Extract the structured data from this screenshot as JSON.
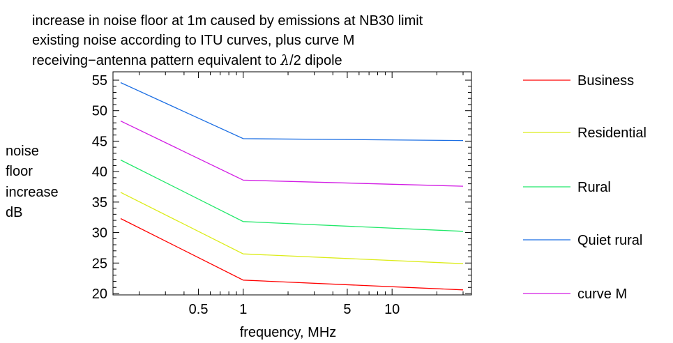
{
  "chart_data": {
    "type": "line",
    "title_lines": [
      "increase in noise floor at 1m caused by emissions at NB30 limit",
      "existing noise according to ITU curves, plus curve M"
    ],
    "title_line3": {
      "before": "receiving−antenna pattern equivalent to ",
      "symbol": "λ",
      "after": "/2 dipole"
    },
    "ylabel_lines": [
      "noise",
      "floor",
      "increase",
      "dB"
    ],
    "xlabel": "frequency, MHz",
    "x_scale": "log",
    "xlim": [
      0.15,
      30
    ],
    "ylim": [
      20,
      55
    ],
    "x_ticks": [
      {
        "value": 0.5,
        "label": "0.5"
      },
      {
        "value": 1,
        "label": "1"
      },
      {
        "value": 5,
        "label": "5"
      },
      {
        "value": 10,
        "label": "10"
      }
    ],
    "y_ticks": [
      {
        "value": 20,
        "label": "20"
      },
      {
        "value": 25,
        "label": "25"
      },
      {
        "value": 30,
        "label": "30"
      },
      {
        "value": 35,
        "label": "35"
      },
      {
        "value": 40,
        "label": "40"
      },
      {
        "value": 45,
        "label": "45"
      },
      {
        "value": 50,
        "label": "50"
      },
      {
        "value": 55,
        "label": "55"
      }
    ],
    "grid": false,
    "legend_position": "right",
    "series": [
      {
        "name": "Business",
        "color": "#ff0000",
        "x": [
          0.15,
          1,
          30
        ],
        "y": [
          32.3,
          22.2,
          20.6
        ]
      },
      {
        "name": "Residential",
        "color": "#dcec1a",
        "x": [
          0.15,
          1,
          30
        ],
        "y": [
          36.6,
          26.5,
          24.9
        ]
      },
      {
        "name": "Rural",
        "color": "#22e86a",
        "x": [
          0.15,
          1,
          30
        ],
        "y": [
          41.9,
          31.8,
          30.2
        ]
      },
      {
        "name": "Quiet rural",
        "color": "#1b6ee3",
        "x": [
          0.15,
          1,
          30
        ],
        "y": [
          54.6,
          45.4,
          45.1
        ]
      },
      {
        "name": "curve M",
        "color": "#d21ce4",
        "x": [
          0.15,
          1,
          30
        ],
        "y": [
          48.3,
          38.6,
          37.6
        ]
      }
    ]
  }
}
